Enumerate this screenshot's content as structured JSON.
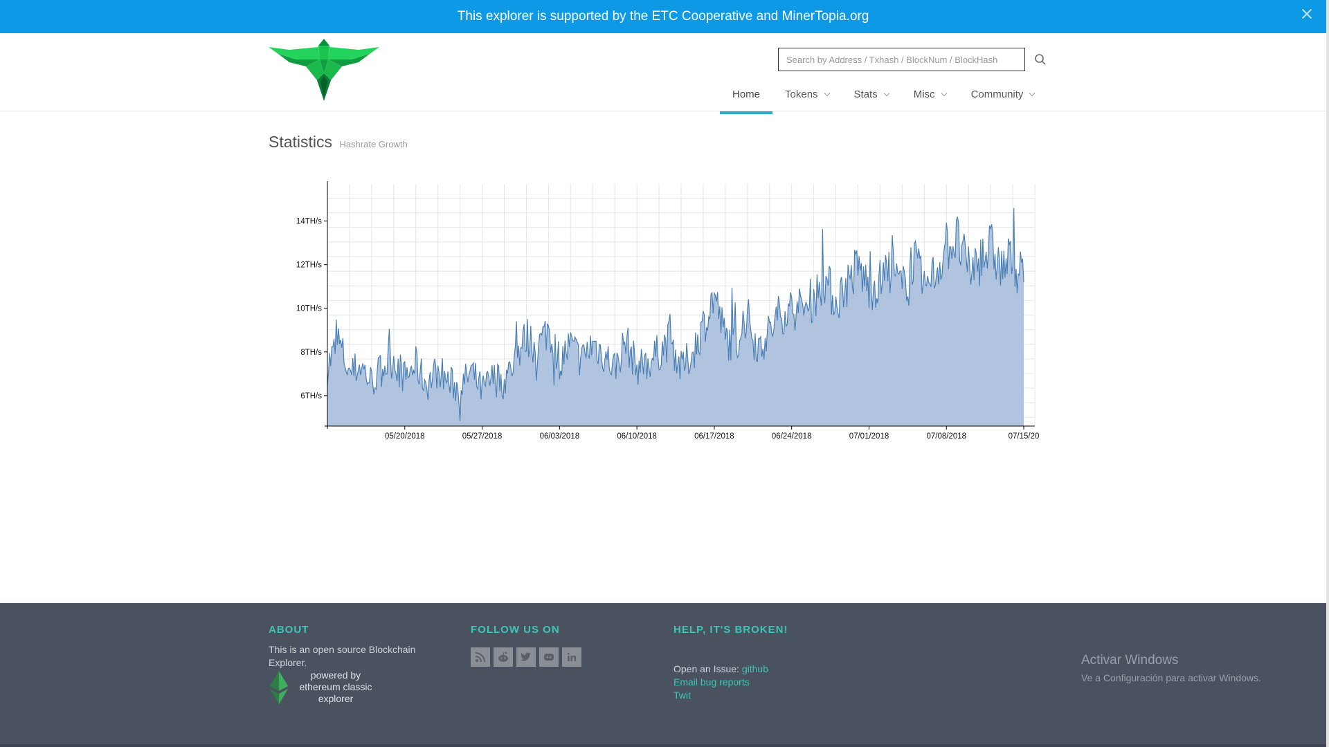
{
  "banner": {
    "text": "This explorer is supported by the ETC Cooperative and MinerTopia.org"
  },
  "header": {
    "search": {
      "placeholder": "Search by Address / Txhash / BlockNum / BlockHash"
    },
    "nav": [
      {
        "label": "Home",
        "active": true,
        "dropdown": false
      },
      {
        "label": "Tokens",
        "active": false,
        "dropdown": true
      },
      {
        "label": "Stats",
        "active": false,
        "dropdown": true
      },
      {
        "label": "Misc",
        "active": false,
        "dropdown": true
      },
      {
        "label": "Community",
        "active": false,
        "dropdown": true
      }
    ]
  },
  "page": {
    "title": "Statistics",
    "subtitle": "Hashrate Growth"
  },
  "chart_data": {
    "type": "area",
    "title": "",
    "xlabel": "",
    "ylabel": "",
    "y_unit": "TH/s",
    "ylim": [
      4.6,
      15.7
    ],
    "yticks": [
      6,
      8,
      10,
      12,
      14
    ],
    "ytick_labels": [
      "6TH/s",
      "8TH/s",
      "10TH/s",
      "12TH/s",
      "14TH/s"
    ],
    "xlim": [
      "2018-05-13",
      "2018-07-16"
    ],
    "xticks": [
      "2018-05-20",
      "2018-05-27",
      "2018-06-03",
      "2018-06-10",
      "2018-06-17",
      "2018-06-24",
      "2018-07-01",
      "2018-07-08",
      "2018-07-15"
    ],
    "xtick_labels": [
      "05/20/2018",
      "05/27/2018",
      "06/03/2018",
      "06/10/2018",
      "06/17/2018",
      "06/24/2018",
      "07/01/2018",
      "07/08/2018",
      "07/15/20"
    ],
    "grid": true,
    "colors": {
      "line": "#4a7fb5",
      "fill": "#b1c4df"
    },
    "series": [
      {
        "x": [
          "2018-05-13",
          "2018-05-14",
          "2018-05-15",
          "2018-05-16",
          "2018-05-17",
          "2018-05-18",
          "2018-05-19",
          "2018-05-20",
          "2018-05-21",
          "2018-05-22",
          "2018-05-23",
          "2018-05-24",
          "2018-05-25",
          "2018-05-26",
          "2018-05-27",
          "2018-05-28",
          "2018-05-29",
          "2018-05-30",
          "2018-05-31",
          "2018-06-01",
          "2018-06-02",
          "2018-06-03",
          "2018-06-04",
          "2018-06-05",
          "2018-06-06",
          "2018-06-07",
          "2018-06-08",
          "2018-06-09",
          "2018-06-10",
          "2018-06-11",
          "2018-06-12",
          "2018-06-13",
          "2018-06-14",
          "2018-06-15",
          "2018-06-16",
          "2018-06-17",
          "2018-06-18",
          "2018-06-19",
          "2018-06-20",
          "2018-06-21",
          "2018-06-22",
          "2018-06-23",
          "2018-06-24",
          "2018-06-25",
          "2018-06-26",
          "2018-06-27",
          "2018-06-28",
          "2018-06-29",
          "2018-06-30",
          "2018-07-01",
          "2018-07-02",
          "2018-07-03",
          "2018-07-04",
          "2018-07-05",
          "2018-07-06",
          "2018-07-07",
          "2018-07-08",
          "2018-07-09",
          "2018-07-10",
          "2018-07-11",
          "2018-07-12",
          "2018-07-13",
          "2018-07-14",
          "2018-07-15"
        ],
        "y": [
          7.3,
          8.5,
          7.0,
          7.4,
          6.6,
          7.3,
          7.7,
          6.8,
          7.4,
          6.5,
          7.2,
          6.6,
          6.3,
          7.1,
          6.2,
          6.8,
          6.6,
          7.7,
          8.7,
          8.2,
          9.1,
          7.6,
          8.3,
          7.6,
          8.4,
          7.9,
          7.3,
          8.5,
          7.3,
          7.5,
          8.0,
          8.6,
          7.2,
          7.9,
          9.2,
          10.6,
          8.6,
          8.4,
          9.6,
          8.2,
          8.9,
          9.8,
          10.0,
          9.9,
          10.5,
          11.3,
          10.3,
          11.1,
          11.9,
          10.9,
          11.2,
          11.8,
          10.8,
          12.3,
          10.9,
          11.6,
          12.9,
          13.1,
          11.7,
          12.2,
          12.8,
          11.8,
          12.3,
          11.2
        ]
      }
    ]
  },
  "footer": {
    "about": {
      "heading": "ABOUT",
      "text": "This is an open source Blockchain Explorer.",
      "powered_by": [
        "powered by",
        "ethereum classic",
        "explorer"
      ]
    },
    "follow": {
      "heading": "FOLLOW US ON",
      "icons": [
        "rss-icon",
        "reddit-icon",
        "twitter-icon",
        "discord-icon",
        "linkedin-icon"
      ]
    },
    "help": {
      "heading": "HELP, IT'S BROKEN!",
      "issue_prefix": "Open an Issue: ",
      "issue_link": "github",
      "email_link": "Email bug reports",
      "twit_link": "Twit"
    },
    "watermark": {
      "title": "Activar Windows",
      "subtitle": "Ve a Configuración para activar Windows."
    }
  }
}
